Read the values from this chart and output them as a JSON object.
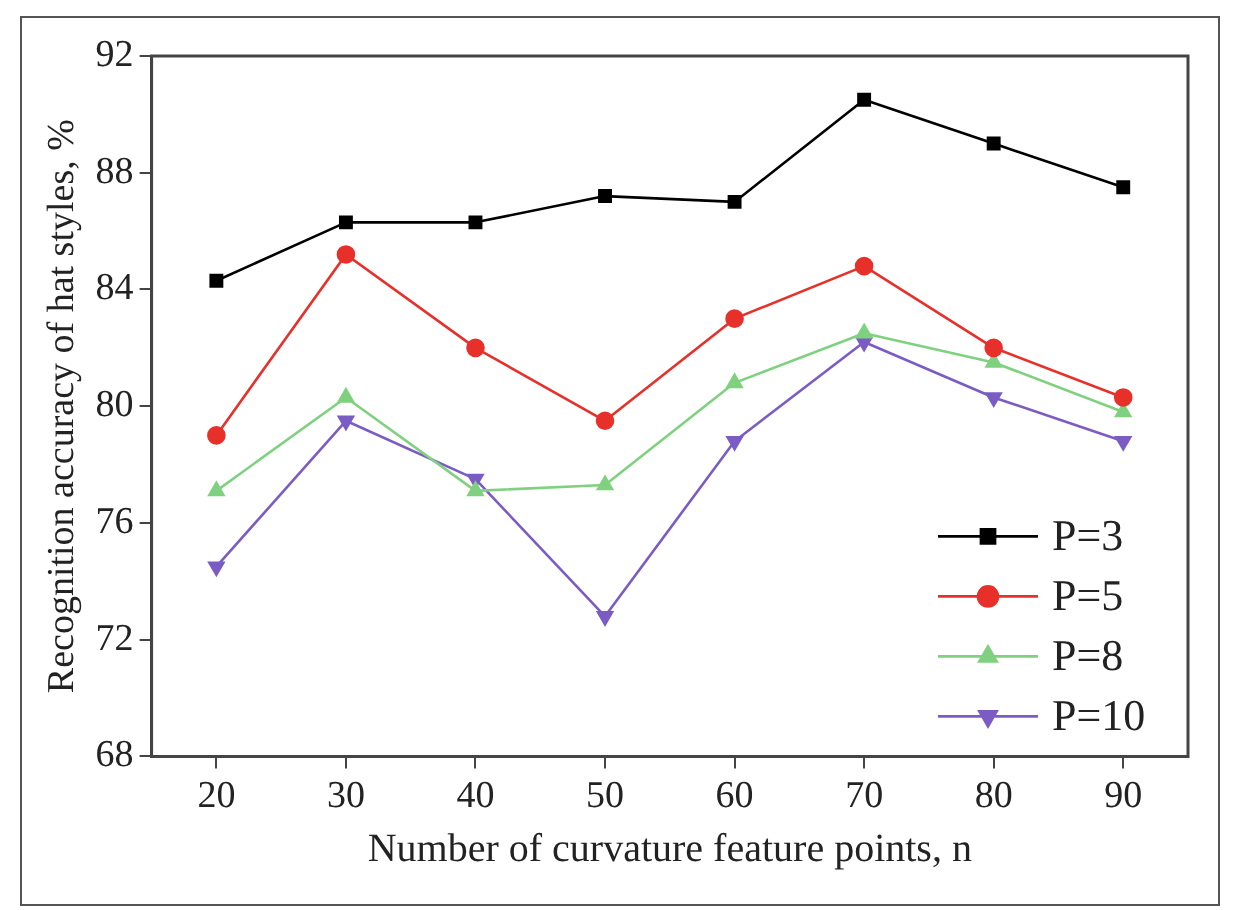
{
  "chart_data": {
    "type": "line",
    "xlabel": "Number of curvature feature points, n",
    "ylabel": "Recognition accuracy of hat styles, %",
    "x": [
      20,
      30,
      40,
      50,
      60,
      70,
      80,
      90
    ],
    "xlim": [
      15,
      95
    ],
    "xticks": [
      20,
      30,
      40,
      50,
      60,
      70,
      80,
      90
    ],
    "ylim": [
      68,
      92
    ],
    "yticks": [
      68,
      72,
      76,
      80,
      84,
      88,
      92
    ],
    "grid": false,
    "legend": "bottom right",
    "line_style": "solid",
    "series": [
      {
        "name": "P=3",
        "color": "#000000",
        "marker": "square",
        "values": [
          84.3,
          86.3,
          86.3,
          87.2,
          87.0,
          90.5,
          89.0,
          87.5
        ]
      },
      {
        "name": "P=5",
        "color": "#e8302a",
        "marker": "circle",
        "values": [
          79.0,
          85.2,
          82.0,
          79.5,
          83.0,
          84.8,
          82.0,
          80.3
        ]
      },
      {
        "name": "P=8",
        "color": "#7fd17f",
        "marker": "triangle",
        "values": [
          77.1,
          80.3,
          77.1,
          77.3,
          80.8,
          82.5,
          81.5,
          79.8
        ]
      },
      {
        "name": "P=10",
        "color": "#7b5cc4",
        "marker": "triangle-down",
        "values": [
          74.5,
          79.5,
          77.5,
          72.8,
          78.8,
          82.2,
          80.3,
          78.8
        ]
      }
    ]
  }
}
